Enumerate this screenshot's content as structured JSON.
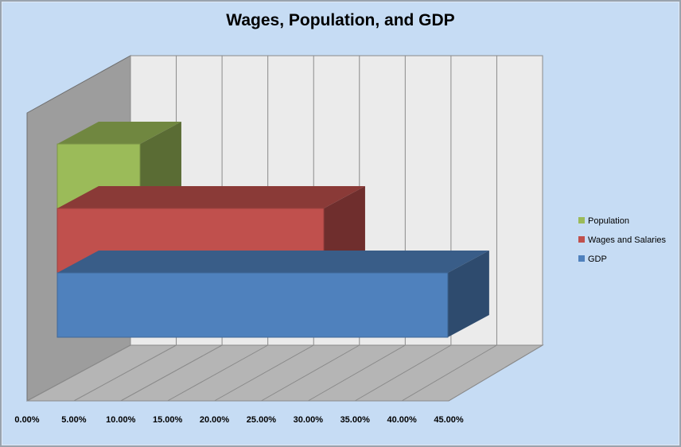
{
  "chart_data": {
    "type": "bar",
    "orientation": "horizontal",
    "style": "3d-stacked-bars",
    "title": "Wages, Population, and GDP",
    "xlabel": "",
    "ylabel": "",
    "xlim": [
      0,
      45
    ],
    "grid": true,
    "legend_placement": "right",
    "x_ticks": [
      "0.00%",
      "5.00%",
      "10.00%",
      "15.00%",
      "20.00%",
      "25.00%",
      "30.00%",
      "35.00%",
      "40.00%",
      "45.00%"
    ],
    "series": [
      {
        "name": "GDP",
        "value": 42.5,
        "color": "#4f81bd"
      },
      {
        "name": "Wages and Salaries",
        "value": 29.0,
        "color": "#c0504d"
      },
      {
        "name": "Population",
        "value": 9.0,
        "color": "#9bbb59"
      }
    ],
    "legend": [
      "Population",
      "Wages and Salaries",
      "GDP"
    ]
  }
}
